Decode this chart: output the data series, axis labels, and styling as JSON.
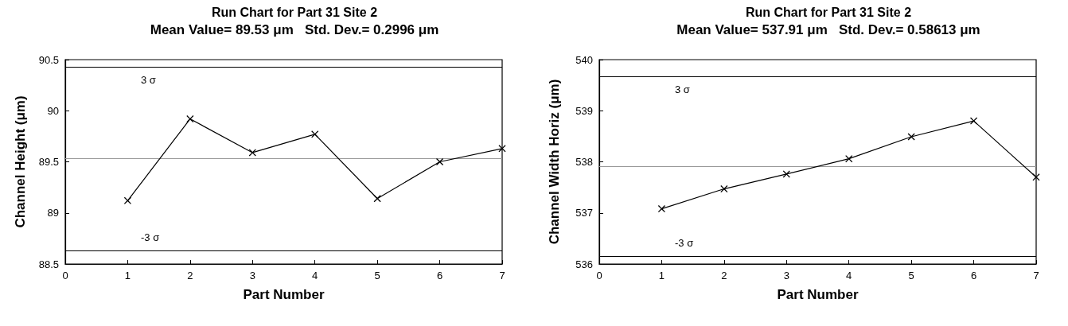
{
  "chart_data": [
    {
      "type": "line",
      "title": "Run Chart for Part 31 Site 2",
      "subtitle": "Mean Value= 89.53 μm   Std. Dev.= 0.2996 μm",
      "xlabel": "Part Number",
      "ylabel": "Channel Height (μm)",
      "x": [
        1,
        2,
        3,
        4,
        5,
        6,
        7
      ],
      "series": [
        {
          "color": "#000000",
          "values": [
            89.12,
            89.92,
            89.59,
            89.77,
            89.14,
            89.5,
            89.63
          ]
        }
      ],
      "marker": "cross",
      "line_style": "solid",
      "xlim": [
        0,
        7
      ],
      "xticks": [
        0,
        1,
        2,
        3,
        4,
        5,
        6,
        7
      ],
      "ylim": [
        88.5,
        90.5
      ],
      "yticks": [
        88.5,
        89,
        89.5,
        90,
        90.5
      ],
      "ref_lines": [
        {
          "axis": "y",
          "value": 90.43,
          "label": "3 σ",
          "color": "#000000"
        },
        {
          "axis": "y",
          "value": 89.53,
          "label": null,
          "color": "#999999"
        },
        {
          "axis": "y",
          "value": 88.63,
          "label": "-3 σ",
          "color": "#000000"
        }
      ]
    },
    {
      "type": "line",
      "title": "Run Chart for Part 31 Site 2",
      "subtitle": "Mean Value= 537.91 μm   Std. Dev.= 0.58613 μm",
      "xlabel": "Part Number",
      "ylabel": "Channel Width Horiz (μm)",
      "x": [
        1,
        2,
        3,
        4,
        5,
        6,
        7
      ],
      "series": [
        {
          "color": "#000000",
          "values": [
            537.08,
            537.47,
            537.76,
            538.06,
            538.49,
            538.8,
            537.7
          ]
        }
      ],
      "marker": "cross",
      "line_style": "solid",
      "xlim": [
        0,
        7
      ],
      "xticks": [
        0,
        1,
        2,
        3,
        4,
        5,
        6,
        7
      ],
      "ylim": [
        536,
        540
      ],
      "yticks": [
        536,
        537,
        538,
        539,
        540
      ],
      "ref_lines": [
        {
          "axis": "y",
          "value": 539.67,
          "label": "3 σ",
          "color": "#000000"
        },
        {
          "axis": "y",
          "value": 537.91,
          "label": null,
          "color": "#999999"
        },
        {
          "axis": "y",
          "value": 536.15,
          "label": "-3 σ",
          "color": "#000000"
        }
      ]
    }
  ]
}
